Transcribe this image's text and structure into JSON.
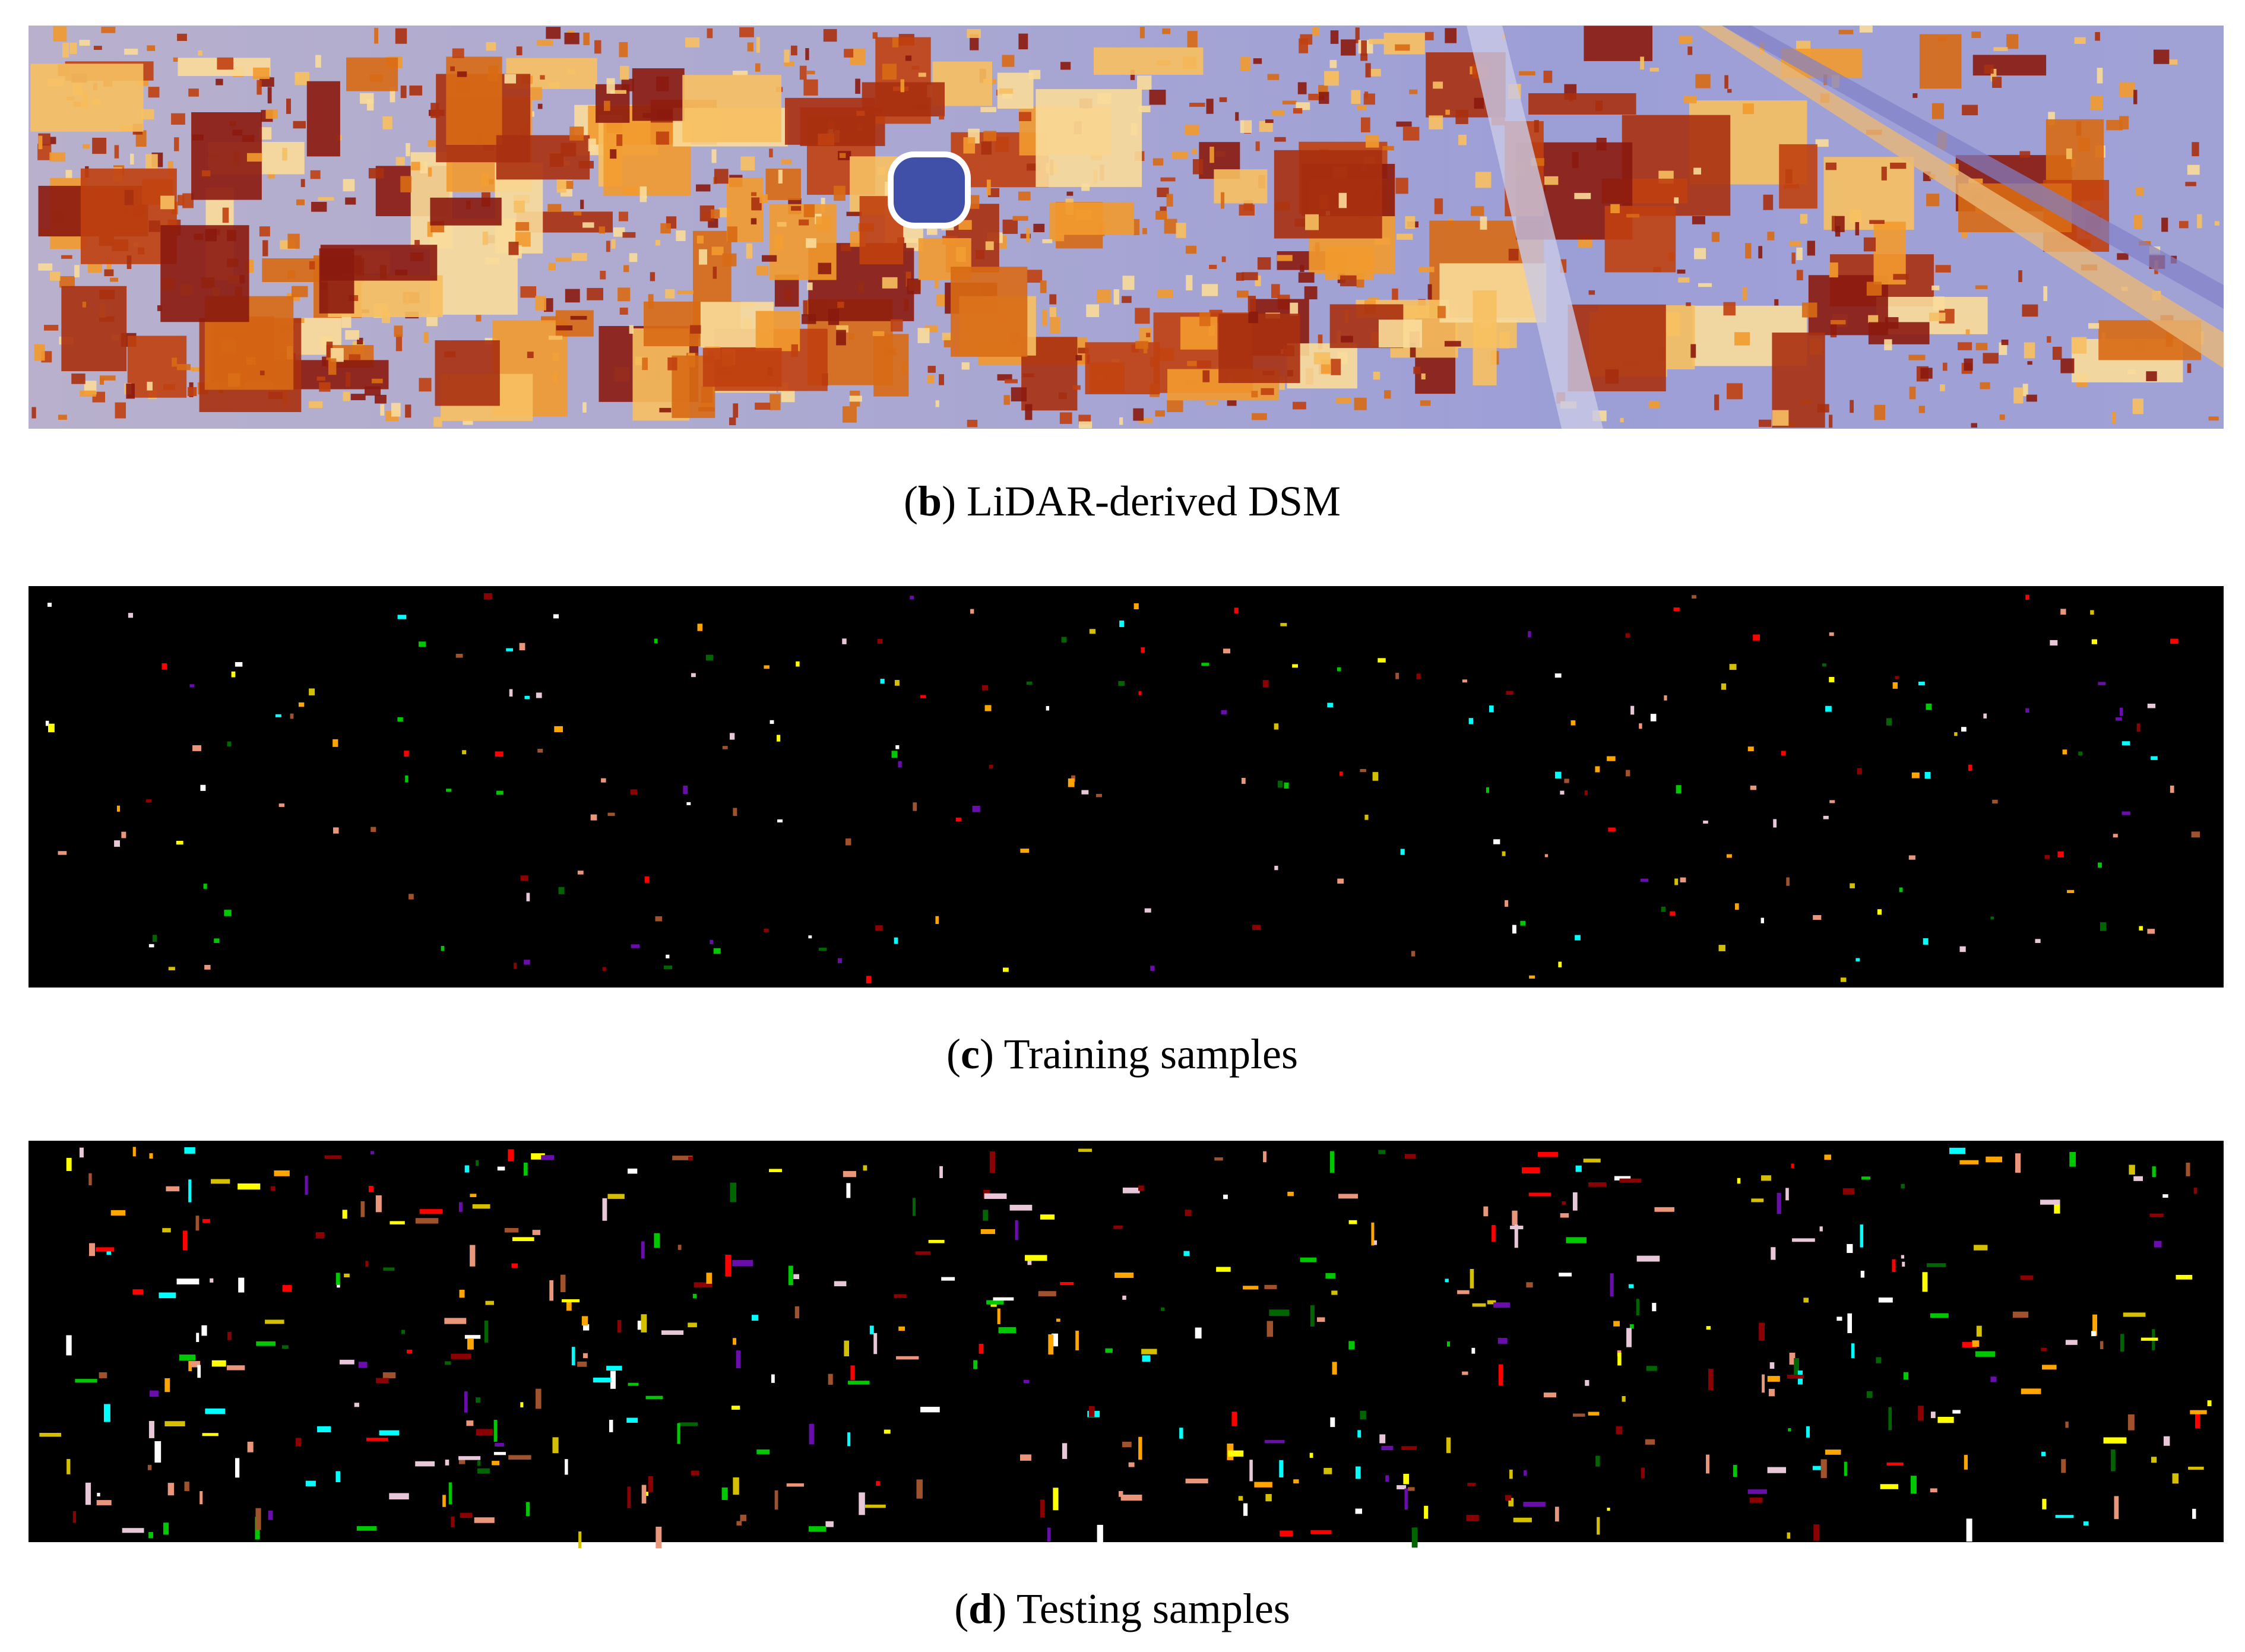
{
  "figure": {
    "panels": [
      {
        "caption": [
          "(",
          "b",
          ") LiDAR-derived DSM"
        ]
      },
      {
        "caption": [
          "(",
          "c",
          ") Training samples"
        ]
      },
      {
        "caption": [
          "(",
          "d",
          ") Testing samples"
        ]
      }
    ]
  }
}
